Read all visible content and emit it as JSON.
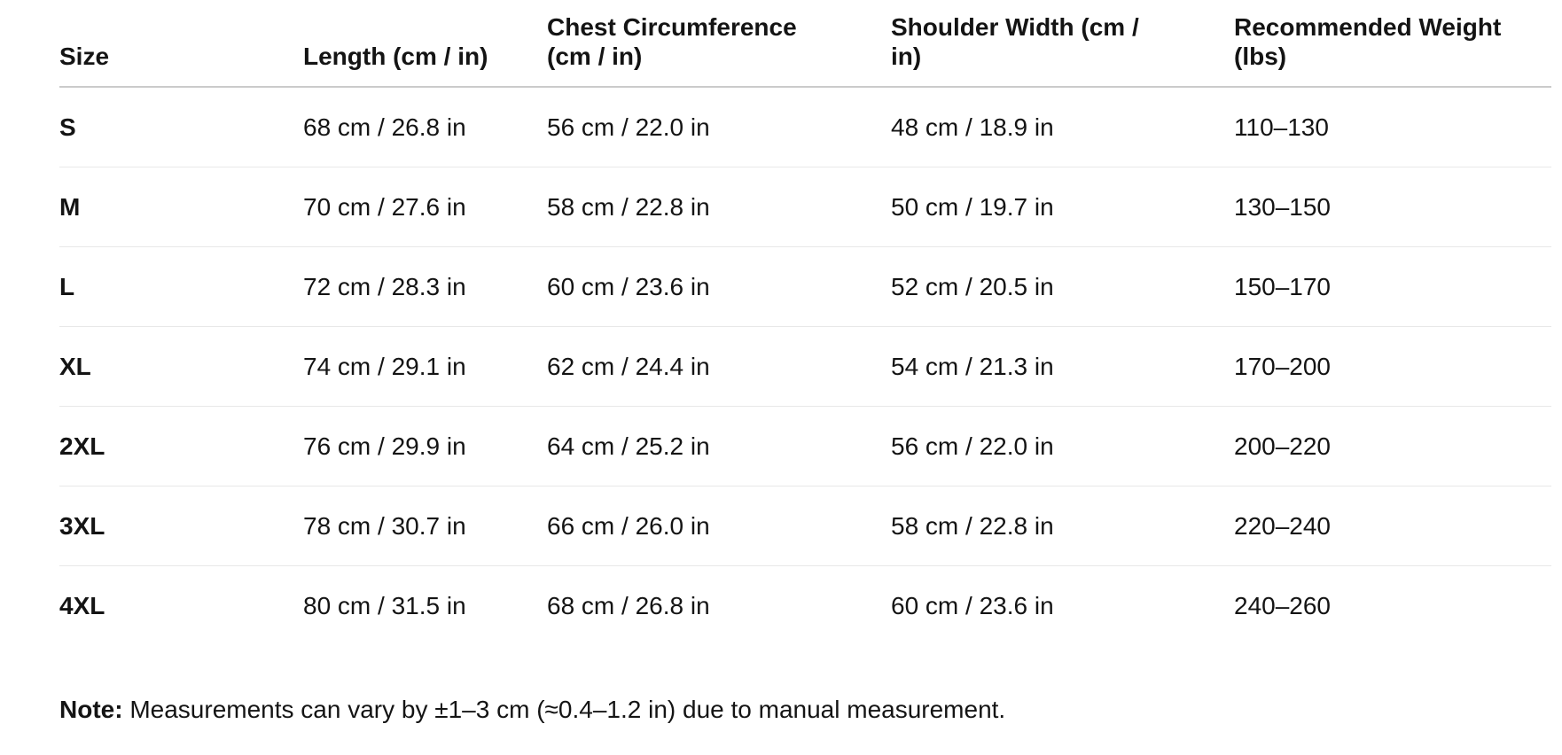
{
  "table": {
    "columns": [
      {
        "label": "Size"
      },
      {
        "label": "Length (cm / in)"
      },
      {
        "label": "Chest Circumference\n(cm / in)"
      },
      {
        "label": "Shoulder Width (cm /\nin)"
      },
      {
        "label": "Recommended Weight\n(lbs)"
      }
    ],
    "rows": [
      {
        "size": "S",
        "length": "68 cm / 26.8 in",
        "chest": "56 cm / 22.0 in",
        "shoulder": "48 cm / 18.9 in",
        "weight": "110–130"
      },
      {
        "size": "M",
        "length": "70 cm / 27.6 in",
        "chest": "58 cm / 22.8 in",
        "shoulder": "50 cm / 19.7 in",
        "weight": "130–150"
      },
      {
        "size": "L",
        "length": "72 cm / 28.3 in",
        "chest": "60 cm / 23.6 in",
        "shoulder": "52 cm / 20.5 in",
        "weight": "150–170"
      },
      {
        "size": "XL",
        "length": "74 cm / 29.1 in",
        "chest": "62 cm / 24.4 in",
        "shoulder": "54 cm / 21.3 in",
        "weight": "170–200"
      },
      {
        "size": "2XL",
        "length": "76 cm / 29.9 in",
        "chest": "64 cm / 25.2 in",
        "shoulder": "56 cm / 22.0 in",
        "weight": "200–220"
      },
      {
        "size": "3XL",
        "length": "78 cm / 30.7 in",
        "chest": "66 cm / 26.0 in",
        "shoulder": "58 cm / 22.8 in",
        "weight": "220–240"
      },
      {
        "size": "4XL",
        "length": "80 cm / 31.5 in",
        "chest": "68 cm / 26.8 in",
        "shoulder": "60 cm / 23.6 in",
        "weight": "240–260"
      }
    ]
  },
  "note": {
    "label": "Note:",
    "text": "Measurements can vary by ±1–3 cm (≈0.4–1.2 in) due to manual measurement."
  },
  "colors": {
    "text": "#141414",
    "header_divider": "#cbcbcb",
    "row_divider": "#e8e8e8",
    "background": "#ffffff"
  }
}
